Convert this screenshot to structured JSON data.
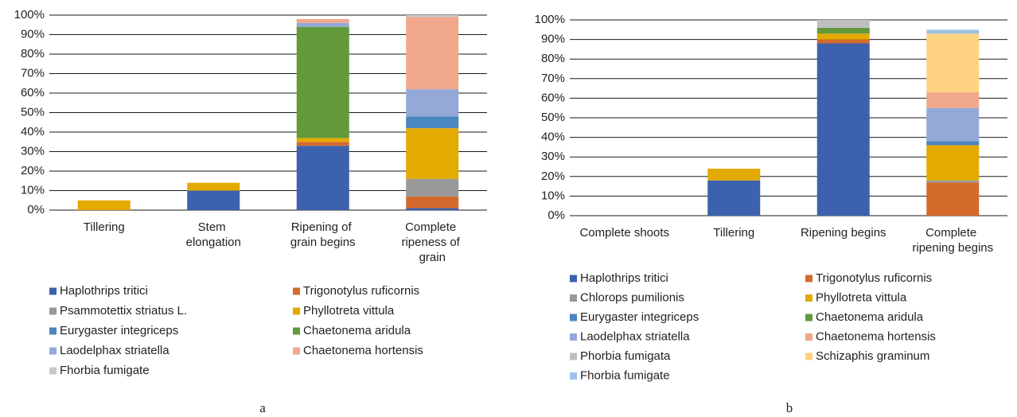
{
  "chart_data": [
    {
      "type": "stacked_bar",
      "label": "a",
      "categories": [
        "Tillering",
        "Stem elongation",
        "Ripening of grain begins",
        "Complete ripeness of grain"
      ],
      "series": [
        {
          "name": "Haplothrips tritici",
          "color": "#3c62ad",
          "values": [
            0,
            10,
            33,
            1
          ]
        },
        {
          "name": "Trigonotylus ruficornis",
          "color": "#d46a2c",
          "values": [
            0,
            0,
            2,
            6
          ]
        },
        {
          "name": "Psammotettix striatus L.",
          "color": "#999999",
          "values": [
            0,
            0,
            0,
            9
          ]
        },
        {
          "name": "Phyllotreta vittula",
          "color": "#e3aa00",
          "values": [
            5,
            4,
            2,
            26
          ]
        },
        {
          "name": "Eurygaster integriceps",
          "color": "#4a86c0",
          "values": [
            0,
            0,
            0,
            6
          ]
        },
        {
          "name": "Chaetonema aridula",
          "color": "#61993b",
          "values": [
            0,
            0,
            57,
            0
          ]
        },
        {
          "name": "Laodelphax striatella",
          "color": "#94a9d8",
          "values": [
            0,
            0,
            2,
            14
          ]
        },
        {
          "name": "Chaetonema hortensis",
          "color": "#f1a78c",
          "values": [
            0,
            0,
            2,
            37
          ]
        },
        {
          "name": "Fhorbia fumigate",
          "color": "#c9c9c9",
          "values": [
            0,
            0,
            0,
            1
          ]
        }
      ],
      "ylim": [
        0,
        100
      ],
      "yticks": [
        {
          "value": 0,
          "label": "0%"
        },
        {
          "value": 10,
          "label": "10%"
        },
        {
          "value": 20,
          "label": "20%"
        },
        {
          "value": 30,
          "label": "30%"
        },
        {
          "value": 40,
          "label": "40%"
        },
        {
          "value": 50,
          "label": "50%"
        },
        {
          "value": 60,
          "label": "60%"
        },
        {
          "value": 70,
          "label": "70%"
        },
        {
          "value": 80,
          "label": "80%"
        },
        {
          "value": 90,
          "label": "90%"
        },
        {
          "value": 100,
          "label": "100%"
        }
      ],
      "grid": true,
      "legend": "bottom"
    },
    {
      "type": "stacked_bar",
      "label": "b",
      "categories": [
        "Complete shoots",
        "Tillering",
        "Ripening begins",
        "Complete ripening begins"
      ],
      "series": [
        {
          "name": "Haplothrips tritici",
          "color": "#3c62ad",
          "values": [
            0,
            18,
            88,
            0
          ]
        },
        {
          "name": "Trigonotylus ruficornis",
          "color": "#d46a2c",
          "values": [
            0,
            0,
            2,
            17
          ]
        },
        {
          "name": "Chlorops pumilionis",
          "color": "#999999",
          "values": [
            0,
            0,
            0,
            1
          ]
        },
        {
          "name": "Phyllotreta vittula",
          "color": "#e3aa00",
          "values": [
            0,
            6,
            3,
            18
          ]
        },
        {
          "name": "Eurygaster integriceps",
          "color": "#4a86c0",
          "values": [
            0,
            0,
            0,
            2
          ]
        },
        {
          "name": "Chaetonema aridula",
          "color": "#61993b",
          "values": [
            0,
            0,
            3,
            0
          ]
        },
        {
          "name": "Laodelphax striatella",
          "color": "#94a9d8",
          "values": [
            0,
            0,
            0,
            17
          ]
        },
        {
          "name": "Chaetonema hortensis",
          "color": "#f1a78c",
          "values": [
            0,
            0,
            0,
            8
          ]
        },
        {
          "name": "Phorbia fumigata",
          "color": "#bfbfbf",
          "values": [
            0,
            0,
            4,
            0
          ]
        },
        {
          "name": "Schizaphis graminum",
          "color": "#fdd281",
          "values": [
            0,
            0,
            0,
            30
          ]
        },
        {
          "name": "Fhorbia fumigate",
          "color": "#9dc3e6",
          "values": [
            0,
            0,
            0,
            2
          ]
        }
      ],
      "ylim": [
        0,
        100
      ],
      "yticks": [
        {
          "value": 0,
          "label": "0%"
        },
        {
          "value": 10,
          "label": "10%"
        },
        {
          "value": 20,
          "label": "20%"
        },
        {
          "value": 30,
          "label": "30%"
        },
        {
          "value": 40,
          "label": "40%"
        },
        {
          "value": 50,
          "label": "50%"
        },
        {
          "value": 60,
          "label": "60%"
        },
        {
          "value": 70,
          "label": "70%"
        },
        {
          "value": 80,
          "label": "80%"
        },
        {
          "value": 90,
          "label": "90%"
        },
        {
          "value": 100,
          "label": "100%"
        }
      ],
      "grid": true,
      "legend": "bottom"
    }
  ]
}
